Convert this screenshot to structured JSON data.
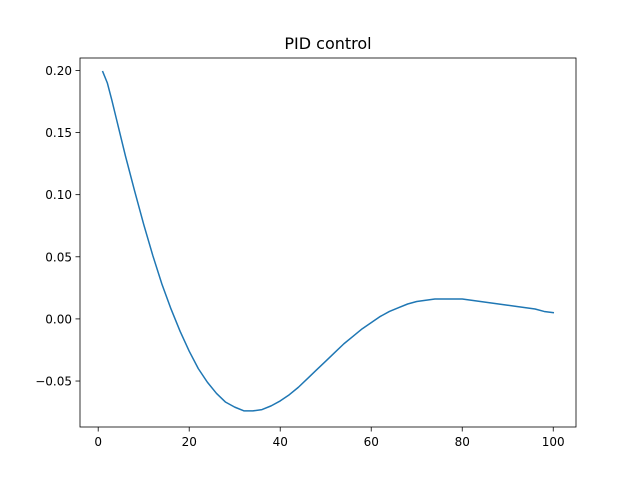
{
  "chart_data": {
    "type": "line",
    "title": "PID control",
    "xlabel": "",
    "ylabel": "",
    "xlim": [
      -4,
      105
    ],
    "ylim": [
      -0.087,
      0.21
    ],
    "x_ticks": [
      0,
      20,
      40,
      60,
      80,
      100
    ],
    "x_tick_labels": [
      "0",
      "20",
      "40",
      "60",
      "80",
      "100"
    ],
    "y_ticks": [
      -0.05,
      0.0,
      0.05,
      0.1,
      0.15,
      0.2
    ],
    "y_tick_labels": [
      "−0.05",
      "0.00",
      "0.05",
      "0.10",
      "0.15",
      "0.20"
    ],
    "grid": false,
    "series": [
      {
        "color": "#1f77b4",
        "x": [
          1,
          2,
          3,
          4,
          5,
          6,
          8,
          10,
          12,
          14,
          16,
          18,
          20,
          22,
          24,
          26,
          28,
          30,
          32,
          34,
          36,
          38,
          40,
          42,
          44,
          46,
          48,
          50,
          52,
          54,
          56,
          58,
          60,
          62,
          64,
          66,
          68,
          70,
          72,
          74,
          76,
          78,
          80,
          82,
          84,
          86,
          88,
          90,
          92,
          94,
          96,
          98,
          100
        ],
        "y": [
          0.199,
          0.19,
          0.176,
          0.161,
          0.146,
          0.131,
          0.103,
          0.076,
          0.051,
          0.028,
          0.008,
          -0.01,
          -0.026,
          -0.04,
          -0.051,
          -0.06,
          -0.067,
          -0.071,
          -0.074,
          -0.074,
          -0.073,
          -0.07,
          -0.066,
          -0.061,
          -0.055,
          -0.048,
          -0.041,
          -0.034,
          -0.027,
          -0.02,
          -0.014,
          -0.008,
          -0.003,
          0.002,
          0.006,
          0.009,
          0.012,
          0.014,
          0.015,
          0.016,
          0.016,
          0.016,
          0.016,
          0.015,
          0.014,
          0.013,
          0.012,
          0.011,
          0.01,
          0.009,
          0.008,
          0.006,
          0.005
        ]
      }
    ]
  }
}
